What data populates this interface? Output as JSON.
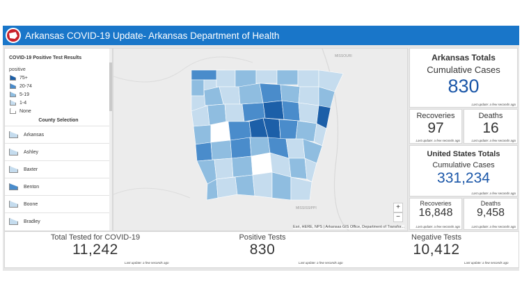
{
  "header": {
    "title": "Arkansas COVID-19 Update- Arkansas Department of Health"
  },
  "legend": {
    "title": "COVID-19 Positive Test Results",
    "field": "positive",
    "classes": [
      {
        "label": "75+",
        "color": "#1c5fa8"
      },
      {
        "label": "20-74",
        "color": "#4a8ccb"
      },
      {
        "label": "5-19",
        "color": "#8fbde0"
      },
      {
        "label": "1-4",
        "color": "#c5dcee"
      },
      {
        "label": "None",
        "color": "#ffffff"
      }
    ]
  },
  "county_selection": {
    "title": "County Selection",
    "items": [
      {
        "label": "Arkansas",
        "color": "#c5dcee"
      },
      {
        "label": "Ashley",
        "color": "#c5dcee"
      },
      {
        "label": "Baxter",
        "color": "#c5dcee"
      },
      {
        "label": "Benton",
        "color": "#4a8ccb"
      },
      {
        "label": "Boone",
        "color": "#c5dcee"
      },
      {
        "label": "Bradley",
        "color": "#c5dcee"
      }
    ]
  },
  "map": {
    "attribution": "Esri, HERE, NPS | Arkansas GIS Office, Department of Transfor...",
    "zoom_in": "+",
    "zoom_out": "−",
    "labels": {
      "missouri": "MISSOURI",
      "mississippi": "MISSISSIPPI"
    }
  },
  "ar_totals": {
    "title": "Arkansas Totals",
    "label": "Cumulative Cases",
    "value": "830",
    "update": "Last update: a few seconds ago"
  },
  "ar_recoveries": {
    "label": "Recoveries",
    "value": "97",
    "update": "Last update: a few seconds ago"
  },
  "ar_deaths": {
    "label": "Deaths",
    "value": "16",
    "update": "Last update: a few seconds ago"
  },
  "us_totals": {
    "title": "United States Totals",
    "label": "Cumulative Cases",
    "value": "331,234",
    "update": "Last update: a few seconds ago"
  },
  "us_recoveries": {
    "label": "Recoveries",
    "value": "16,848",
    "update": "Last update: a few seconds ago"
  },
  "us_deaths": {
    "label": "Deaths",
    "value": "9,458",
    "update": "Last update: a few seconds ago"
  },
  "bottom": {
    "tested": {
      "label": "Total Tested for COVID-19",
      "value": "11,242",
      "update": "Last update: a few seconds ago"
    },
    "positive": {
      "label": "Positive Tests",
      "value": "830",
      "update": "Last update: a few seconds ago"
    },
    "negative": {
      "label": "Negative Tests",
      "value": "10,412",
      "update": "Last update: a few seconds ago"
    }
  },
  "colors": {
    "header": "#1976c9",
    "accent_value": "#1a56a8",
    "dark_value": "#333333"
  }
}
